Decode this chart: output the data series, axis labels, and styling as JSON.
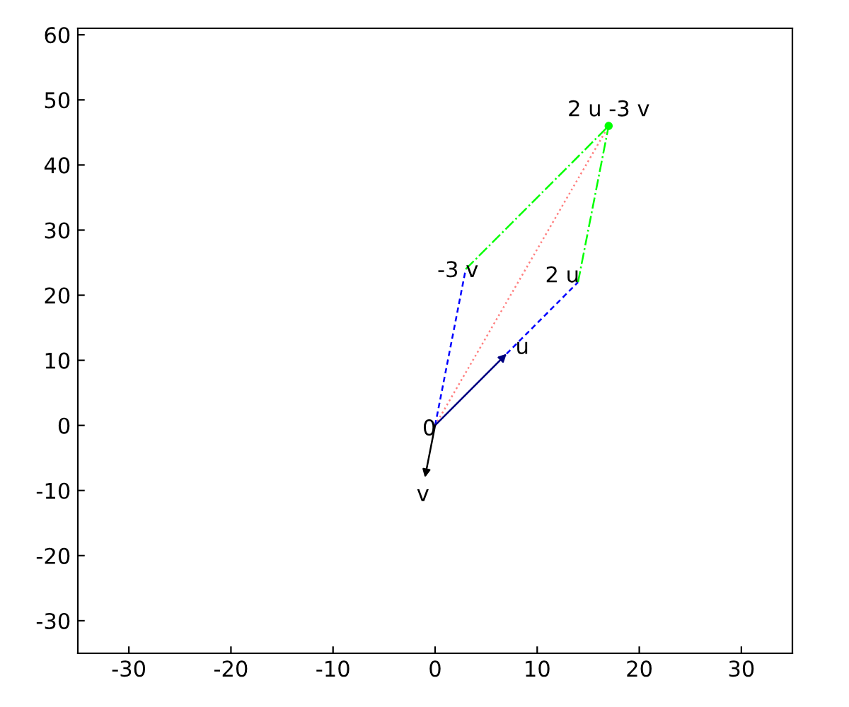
{
  "chart_data": {
    "type": "line",
    "xlim": [
      -35,
      35
    ],
    "ylim": [
      -35,
      61
    ],
    "xticks": [
      -30,
      -20,
      -10,
      0,
      10,
      20,
      30
    ],
    "yticks": [
      -30,
      -20,
      -10,
      0,
      10,
      20,
      30,
      40,
      50,
      60
    ],
    "grid": false,
    "series": [
      {
        "x": [
          0,
          7
        ],
        "values": [
          0,
          11
        ],
        "color": "#000080",
        "line_style": "solid"
      },
      {
        "x": [
          0,
          -1
        ],
        "values": [
          0,
          -8
        ],
        "color": "#000000",
        "line_style": "solid"
      },
      {
        "x": [
          0,
          3
        ],
        "values": [
          0,
          24
        ],
        "color": "#0000ff",
        "line_style": "dashed"
      },
      {
        "x": [
          7,
          14
        ],
        "values": [
          11,
          22
        ],
        "color": "#0000ff",
        "line_style": "dashed"
      },
      {
        "x": [
          3,
          17
        ],
        "values": [
          24,
          46
        ],
        "color": "#00ff00",
        "line_style": "dashdot"
      },
      {
        "x": [
          14,
          17
        ],
        "values": [
          22,
          46
        ],
        "color": "#00ff00",
        "line_style": "dashdot"
      },
      {
        "x": [
          0,
          17
        ],
        "values": [
          0,
          46
        ],
        "color": "#ff8080",
        "line_style": "dotted"
      },
      {
        "type": "scatter",
        "x": [
          17
        ],
        "values": [
          46
        ],
        "color": "#00ff00",
        "marker": "circle"
      }
    ],
    "annotations": [
      {
        "text": "0",
        "x": 0,
        "y": 0
      },
      {
        "text": "v",
        "x": -1,
        "y": -8
      },
      {
        "text": "u",
        "x": 7,
        "y": 11
      },
      {
        "text": "2 u",
        "x": 14,
        "y": 22
      },
      {
        "text": "-3 v",
        "x": 3,
        "y": 24
      },
      {
        "text": "2 u -3 v",
        "x": 17,
        "y": 46
      }
    ]
  }
}
